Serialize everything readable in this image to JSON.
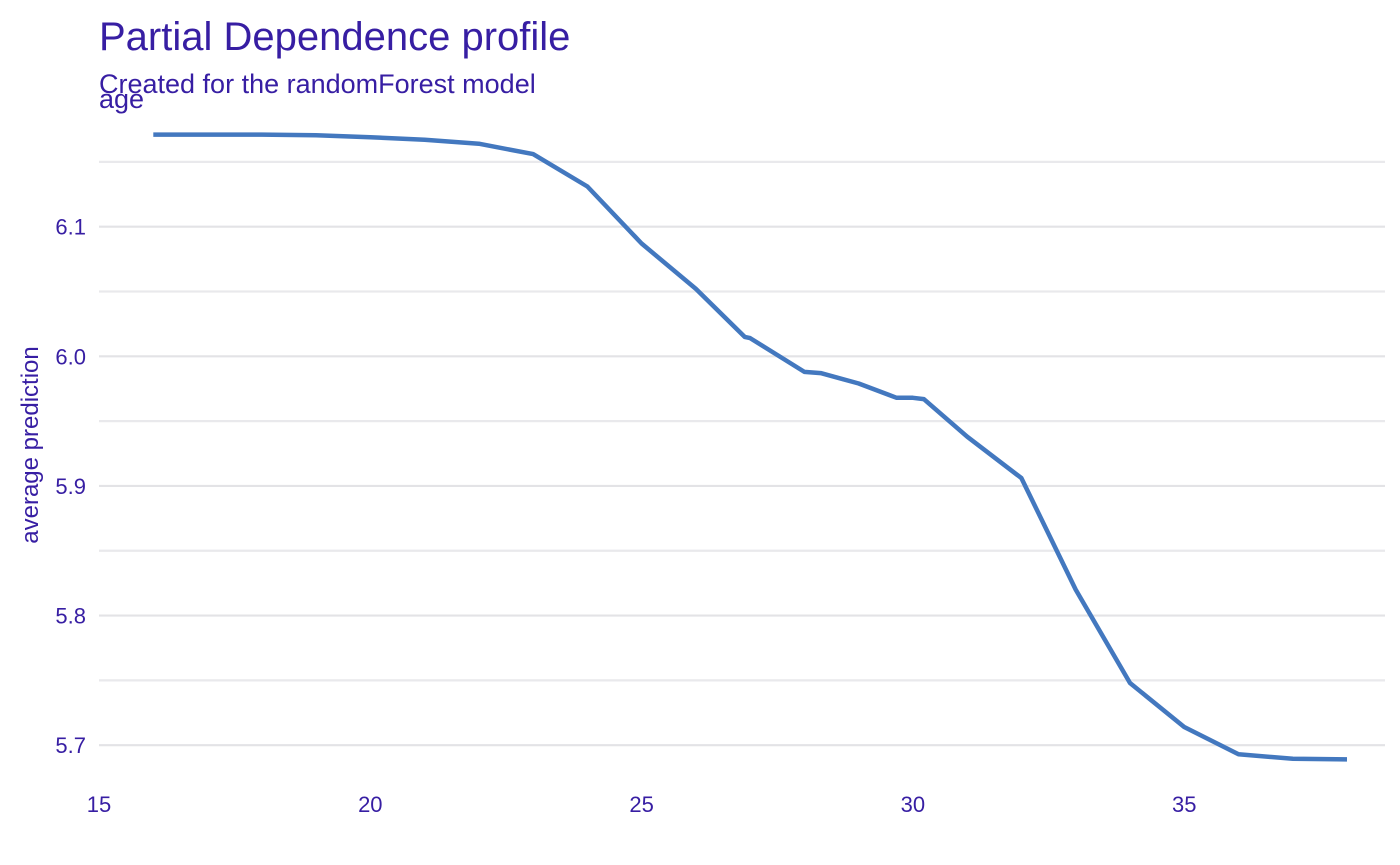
{
  "colors": {
    "text": "#371ea3",
    "line": "#4378bf",
    "grid": "#e3e3e6"
  },
  "chart_data": {
    "type": "line",
    "title": "Partial Dependence profile",
    "subtitle": "Created for the randomForest model",
    "facet_label": "age",
    "xlabel": "",
    "ylabel": "average prediction",
    "xlim": [
      15,
      38.7
    ],
    "ylim": [
      5.677,
      6.19
    ],
    "x_ticks": [
      15,
      20,
      25,
      30,
      35
    ],
    "y_ticks": [
      5.7,
      5.8,
      5.9,
      6.0,
      6.1
    ],
    "grid": true,
    "legend": "none",
    "series": [
      {
        "x": [
          16,
          17,
          18,
          19,
          20,
          21,
          22,
          23,
          24,
          25,
          26,
          26.9,
          27,
          28,
          28.3,
          29,
          29.7,
          30,
          30.2,
          31,
          32,
          33,
          34,
          35,
          36,
          37,
          38
        ],
        "y": [
          6.171,
          6.171,
          6.171,
          6.1705,
          6.169,
          6.167,
          6.164,
          6.156,
          6.131,
          6.087,
          6.052,
          6.015,
          6.014,
          5.988,
          5.987,
          5.979,
          5.968,
          5.968,
          5.967,
          5.938,
          5.906,
          5.82,
          5.748,
          5.714,
          5.693,
          5.6895,
          5.689
        ]
      }
    ]
  }
}
